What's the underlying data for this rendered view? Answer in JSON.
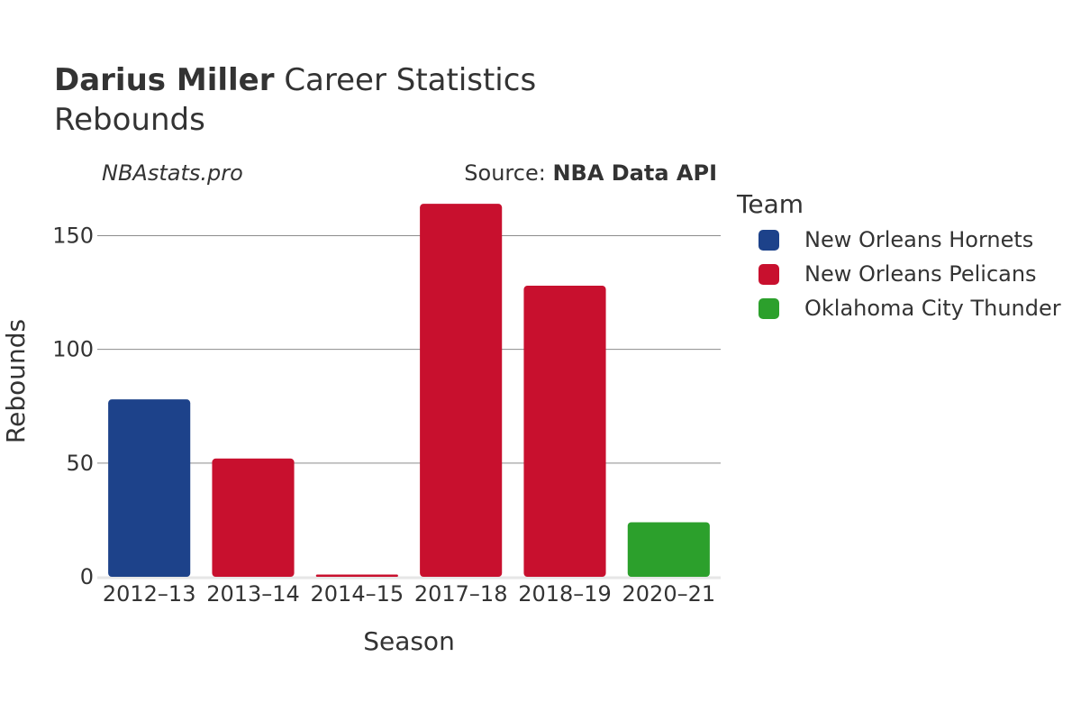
{
  "header": {
    "player_name": "Darius Miller",
    "title_rest": "Career Statistics",
    "subtitle": "Rebounds",
    "watermark": "NBAstats.pro",
    "source_prefix": "Source:",
    "source_name": "NBA Data API"
  },
  "legend": {
    "title": "Team",
    "items": [
      {
        "label": "New Orleans Hornets",
        "color": "#1d428a"
      },
      {
        "label": "New Orleans Pelicans",
        "color": "#c8102e"
      },
      {
        "label": "Oklahoma City Thunder",
        "color": "#2ca02c"
      }
    ]
  },
  "chart_data": {
    "type": "bar",
    "title": "Darius Miller Career Statistics",
    "subtitle": "Rebounds",
    "xlabel": "Season",
    "ylabel": "Rebounds",
    "categories": [
      "2012–13",
      "2013–14",
      "2014–15",
      "2017–18",
      "2018–19",
      "2020–21"
    ],
    "values": [
      78,
      52,
      1,
      164,
      128,
      24
    ],
    "teams": [
      "New Orleans Hornets",
      "New Orleans Pelicans",
      "New Orleans Pelicans",
      "New Orleans Pelicans",
      "New Orleans Pelicans",
      "Oklahoma City Thunder"
    ],
    "colors": [
      "#1d428a",
      "#c8102e",
      "#c8102e",
      "#c8102e",
      "#c8102e",
      "#2ca02c"
    ],
    "yticks": [
      0,
      50,
      100,
      150
    ],
    "ylim": [
      0,
      172
    ],
    "grid": true,
    "legend_position": "right"
  }
}
